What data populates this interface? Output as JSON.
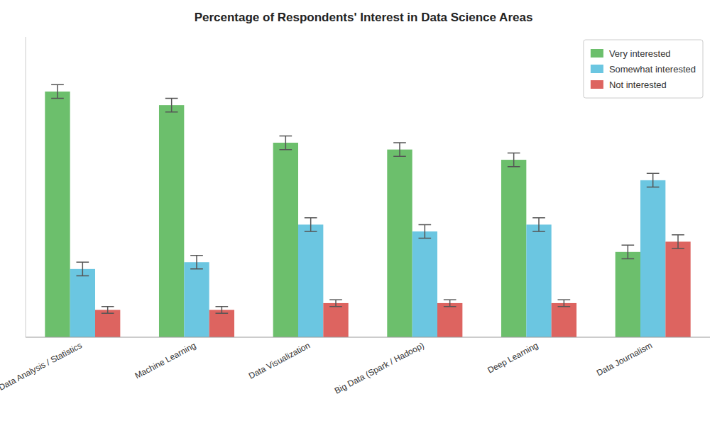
{
  "chart_data": {
    "type": "bar",
    "title": "Percentage of Respondents' Interest in Data Science Areas",
    "categories": [
      "Data Analysis / Statistics",
      "Machine Learning",
      "Data Visualization",
      "Big Data (Spark / Hadoop)",
      "Deep Learning",
      "Data Journalism"
    ],
    "series": [
      {
        "name": "Very interested",
        "color": "#5cb85c",
        "values": [
          72,
          68,
          57,
          55,
          52,
          25
        ],
        "errors": [
          2,
          2,
          2,
          2,
          2,
          2
        ]
      },
      {
        "name": "Somewhat interested",
        "color": "#5bc0de",
        "values": [
          20,
          22,
          33,
          31,
          33,
          46
        ],
        "errors": [
          2,
          2,
          2,
          2,
          2,
          2
        ]
      },
      {
        "name": "Not interested",
        "color": "#d9534f",
        "values": [
          8,
          8,
          10,
          10,
          10,
          28
        ],
        "errors": [
          1,
          1,
          1,
          1,
          1,
          2
        ]
      }
    ],
    "ylim": [
      0,
      88
    ],
    "grid": false,
    "legend": "upper right",
    "tick_labels": "x"
  }
}
